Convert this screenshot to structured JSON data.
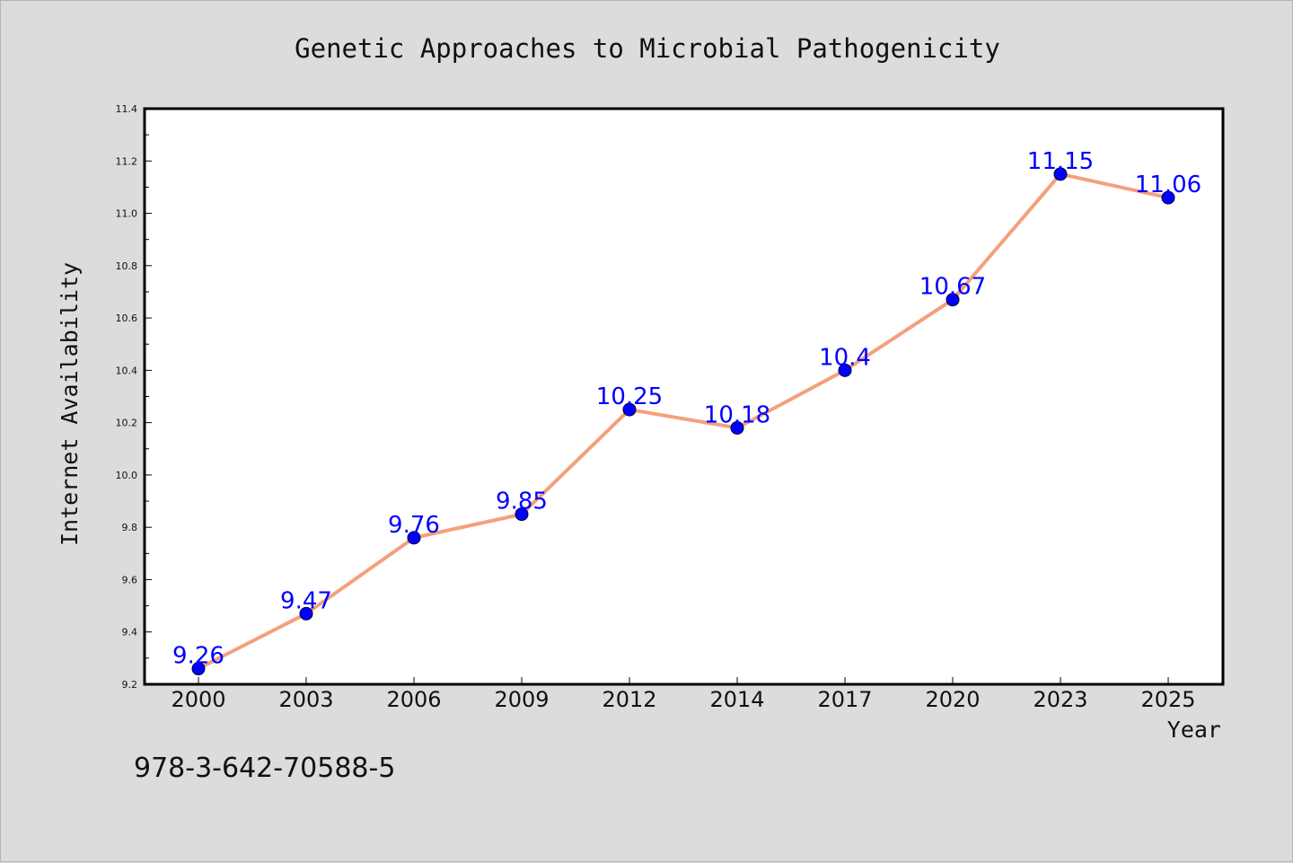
{
  "chart_data": {
    "type": "line",
    "title": "Genetic Approaches to Microbial Pathogenicity",
    "xlabel": "Year",
    "ylabel": "Internet Availability",
    "categories": [
      "2000",
      "2003",
      "2006",
      "2009",
      "2012",
      "2014",
      "2017",
      "2020",
      "2023",
      "2025"
    ],
    "values": [
      9.26,
      9.47,
      9.76,
      9.85,
      10.25,
      10.18,
      10.4,
      10.67,
      11.15,
      11.06
    ],
    "data_labels": [
      "9.26",
      "9.47",
      "9.76",
      "9.85",
      "10.25",
      "10.18",
      "10.4",
      "10.67",
      "11.15",
      "11.06"
    ],
    "ylim": [
      9.2,
      11.4
    ],
    "yticks": [
      "9.2",
      "9.4",
      "9.6",
      "9.8",
      "10.0",
      "10.2",
      "10.4",
      "10.6",
      "10.8",
      "11.0",
      "11.2",
      "11.4"
    ],
    "grid": false,
    "line_color": "#f4a07c",
    "marker_color": "#0000ff",
    "label_color": "#0000ff"
  },
  "footer_text": "978-3-642-70588-5"
}
